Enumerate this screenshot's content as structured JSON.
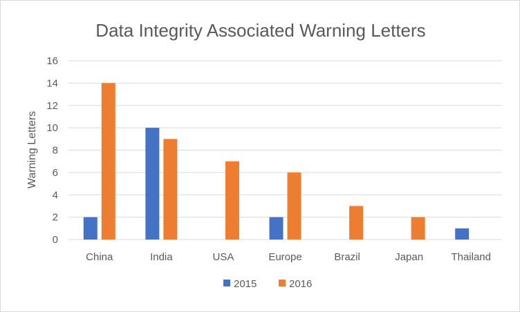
{
  "chart_data": {
    "type": "bar",
    "title": "Data Integrity Associated Warning Letters",
    "xlabel": "",
    "ylabel": "Warning Letters",
    "categories": [
      "China",
      "India",
      "USA",
      "Europe",
      "Brazil",
      "Japan",
      "Thailand"
    ],
    "series": [
      {
        "name": "2015",
        "color": "#4472c4",
        "values": [
          2,
          10,
          0,
          2,
          0,
          0,
          1
        ]
      },
      {
        "name": "2016",
        "color": "#ed7d31",
        "values": [
          14,
          9,
          7,
          6,
          3,
          2,
          0
        ]
      }
    ],
    "ylim": [
      0,
      16
    ],
    "yticks": [
      0,
      2,
      4,
      6,
      8,
      10,
      12,
      14,
      16
    ],
    "grid": true,
    "legend": "bottom"
  }
}
